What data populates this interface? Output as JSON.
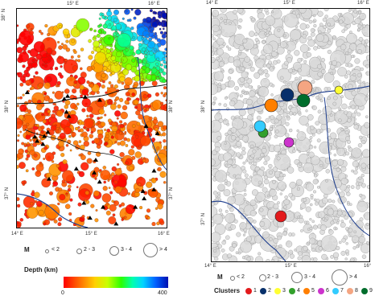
{
  "left_map": {
    "x_ticks": [
      "14° E",
      "15° E",
      "16° E"
    ],
    "y_ticks": [
      "38° N",
      "37° N"
    ],
    "top_ticks": [
      "15° E",
      "16° E"
    ],
    "corner_tick": "38° N"
  },
  "right_map": {
    "x_ticks": [
      "14° E",
      "15° E",
      "16°"
    ],
    "top_ticks": [
      "14° E",
      "15° E",
      "16° E"
    ],
    "y_ticks": [
      "38° N",
      "37° N"
    ]
  },
  "magnitude_legend_left": {
    "title": "M",
    "classes": [
      "< 2",
      "2 - 3",
      "3 - 4",
      "> 4"
    ]
  },
  "depth_legend": {
    "title": "Depth (km)",
    "min": "0",
    "max": "400"
  },
  "magnitude_legend_right": {
    "title": "M",
    "classes": [
      "< 2",
      "2 - 3",
      "3 - 4",
      "> 4"
    ]
  },
  "clusters_legend": {
    "title": "Clusters",
    "items": [
      {
        "label": "1",
        "color": "#e31a1c"
      },
      {
        "label": "2",
        "color": "#08306b"
      },
      {
        "label": "3",
        "color": "#ffff33"
      },
      {
        "label": "4",
        "color": "#33a02c"
      },
      {
        "label": "5",
        "color": "#ff7f00"
      },
      {
        "label": "6",
        "color": "#cc33cc"
      },
      {
        "label": "7",
        "color": "#33ccff"
      },
      {
        "label": "8",
        "color": "#f4a582"
      },
      {
        "label": "9",
        "color": "#006d2c"
      }
    ]
  },
  "colors": {
    "coastline": "#1f3f8f",
    "fault": "#111111",
    "right_event_fill": "#d9d9d9",
    "right_event_stroke": "#8c8c8c"
  }
}
